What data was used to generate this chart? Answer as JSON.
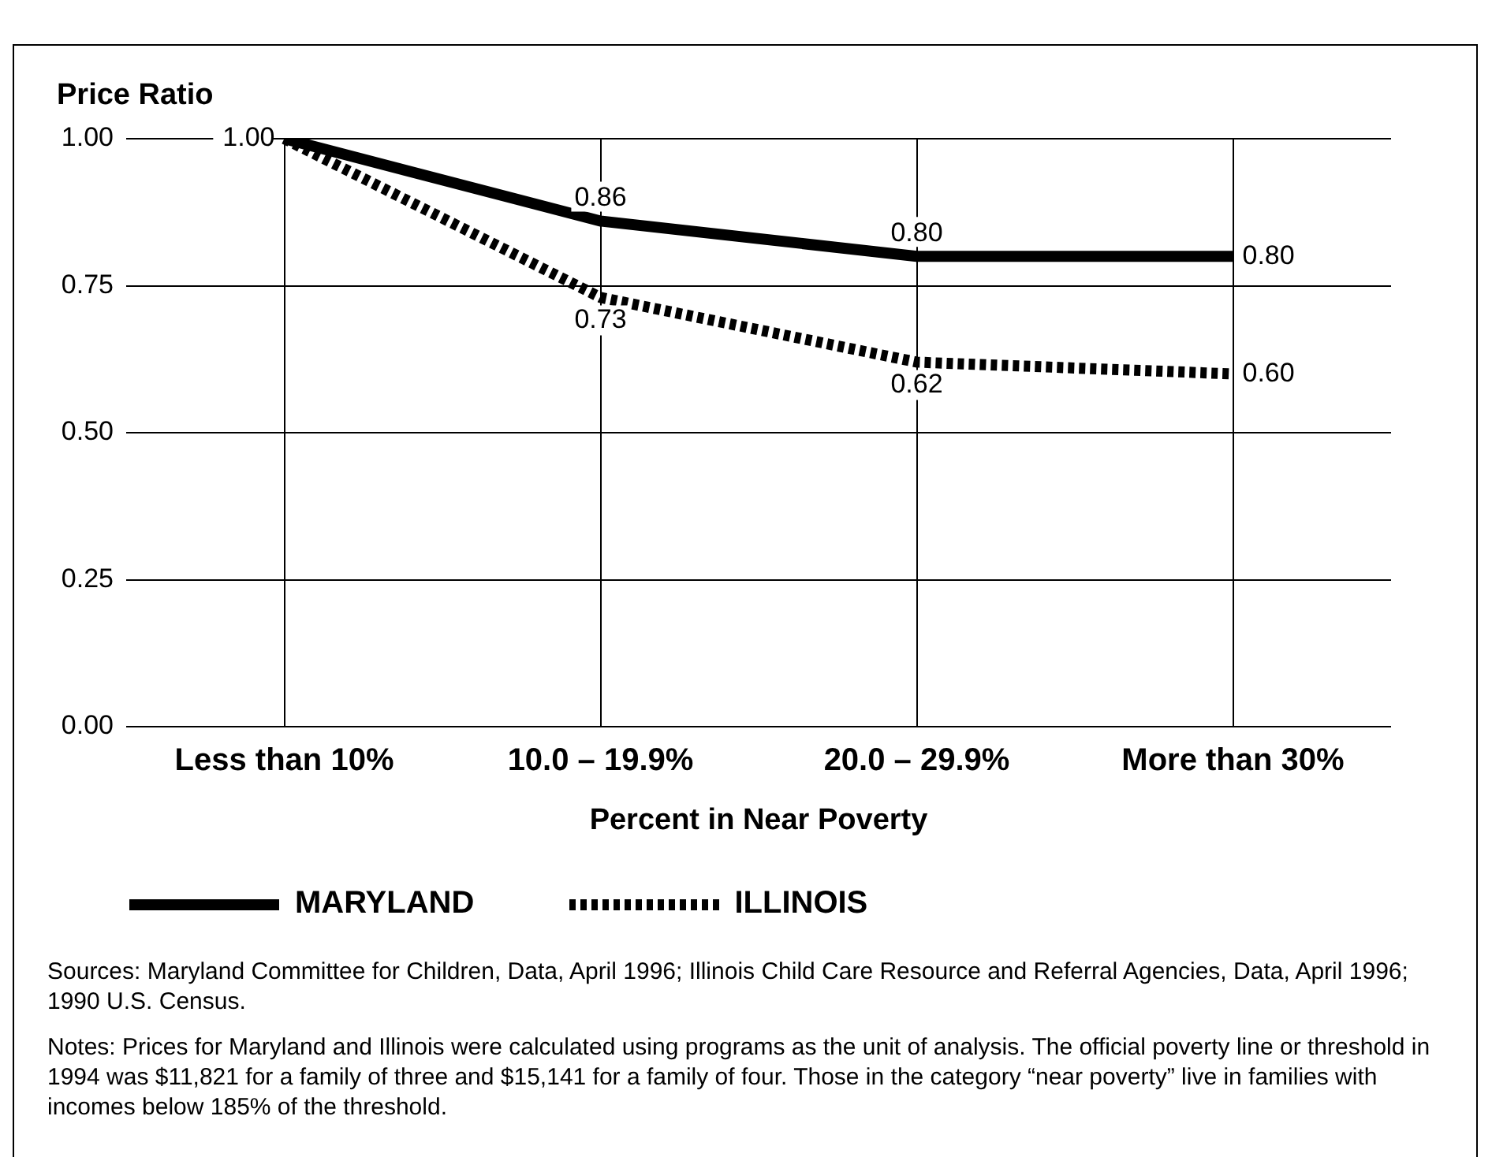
{
  "chart_data": {
    "type": "line",
    "ylabel": "Price Ratio",
    "xlabel": "Percent in Near Poverty",
    "categories": [
      "Less than 10%",
      "10.0 – 19.9%",
      "20.0 – 29.9%",
      "More than 30%"
    ],
    "series": [
      {
        "name": "MARYLAND",
        "color": "#000000",
        "line_style": "solid",
        "values": [
          1.0,
          0.86,
          0.8,
          0.8
        ],
        "value_labels": [
          "1.00",
          "0.86",
          "0.80",
          "0.80"
        ]
      },
      {
        "name": "ILLINOIS",
        "color": "#000000",
        "line_style": "dotted",
        "values": [
          1.0,
          0.73,
          0.62,
          0.6
        ],
        "value_labels": [
          null,
          "0.73",
          "0.62",
          "0.60"
        ]
      }
    ],
    "ylim": [
      0,
      1
    ],
    "yticks": [
      {
        "value": 0,
        "label": "0.00"
      },
      {
        "value": 0.25,
        "label": "0.25"
      },
      {
        "value": 0.5,
        "label": "0.50"
      },
      {
        "value": 0.75,
        "label": "0.75"
      },
      {
        "value": 1,
        "label": "1.00"
      }
    ],
    "grid": true,
    "legend": "bottom",
    "marker": "none",
    "annotations": [
      "Sources: Maryland Committee for Children, Data, April 1996; Illinois Child Care Resource and Referral Agencies, Data, April 1996; 1990 U.S. Census.",
      "Notes: Prices for Maryland and Illinois were calculated using programs as the unit of analysis. The official poverty line or threshold in 1994 was $11,821 for a family of three and $15,141 for a family of four. Those in the category “near poverty” live in families with incomes below 185% of the threshold."
    ]
  }
}
